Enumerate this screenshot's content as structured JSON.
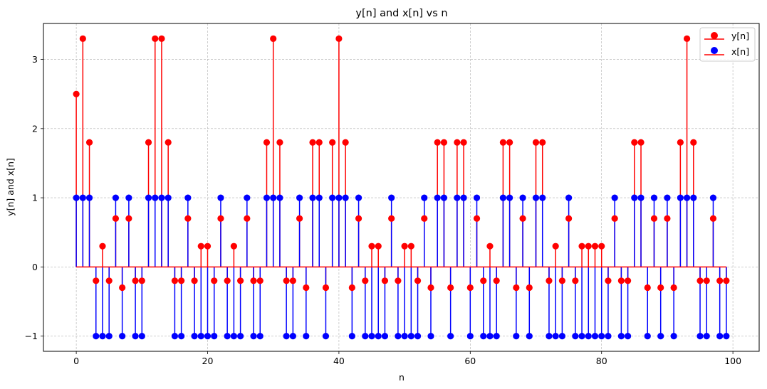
{
  "chart_data": {
    "type": "stem",
    "title": "y[n] and x[n] vs n",
    "xlabel": "n",
    "ylabel": "y[n] and x[n]",
    "xlim": [
      -5,
      104
    ],
    "ylim": [
      -1.22,
      3.52
    ],
    "xticks": [
      0,
      20,
      40,
      60,
      80,
      100
    ],
    "yticks": [
      -1,
      0,
      1,
      2,
      3
    ],
    "grid": true,
    "legend_position": "top-right",
    "baseline": 0,
    "series": [
      {
        "name": "y[n]",
        "color": "#ff0000",
        "stem_color": "#ff0000",
        "x_start": 0,
        "values": [
          2.5,
          3.3,
          1.8,
          -0.2,
          0.3,
          -0.2,
          0.7,
          -0.3,
          0.7,
          -0.2,
          -0.2,
          1.8,
          3.3,
          3.3,
          1.8,
          -0.2,
          -0.2,
          0.7,
          -0.2,
          0.3,
          0.3,
          -0.2,
          0.7,
          -0.2,
          0.3,
          -0.2,
          0.7,
          -0.2,
          -0.2,
          1.8,
          3.3,
          1.8,
          -0.2,
          -0.2,
          0.7,
          -0.3,
          1.8,
          1.8,
          -0.3,
          1.8,
          3.3,
          1.8,
          -0.3,
          0.7,
          -0.2,
          0.3,
          0.3,
          -0.2,
          0.7,
          -0.2,
          0.3,
          0.3,
          -0.2,
          0.7,
          -0.3,
          1.8,
          1.8,
          -0.3,
          1.8,
          1.8,
          -0.3,
          0.7,
          -0.2,
          0.3,
          -0.2,
          1.8,
          1.8,
          -0.3,
          0.7,
          -0.3,
          1.8,
          1.8,
          -0.2,
          0.3,
          -0.2,
          0.7,
          -0.2,
          0.3,
          0.3,
          0.3,
          0.3,
          -0.2,
          0.7,
          -0.2,
          -0.2,
          1.8,
          1.8,
          -0.3,
          0.7,
          -0.3,
          0.7,
          -0.3,
          1.8,
          3.3,
          1.8,
          -0.2,
          -0.2,
          0.7,
          -0.2,
          -0.2
        ]
      },
      {
        "name": "x[n]",
        "color": "#0000ff",
        "stem_color": "#0000ff",
        "x_start": 0,
        "values": [
          1,
          1,
          1,
          -1,
          -1,
          -1,
          1,
          -1,
          1,
          -1,
          -1,
          1,
          1,
          1,
          1,
          -1,
          -1,
          1,
          -1,
          -1,
          -1,
          -1,
          1,
          -1,
          -1,
          -1,
          1,
          -1,
          -1,
          1,
          1,
          1,
          -1,
          -1,
          1,
          -1,
          1,
          1,
          -1,
          1,
          1,
          1,
          -1,
          1,
          -1,
          -1,
          -1,
          -1,
          1,
          -1,
          -1,
          -1,
          -1,
          1,
          -1,
          1,
          1,
          -1,
          1,
          1,
          -1,
          1,
          -1,
          -1,
          -1,
          1,
          1,
          -1,
          1,
          -1,
          1,
          1,
          -1,
          -1,
          -1,
          1,
          -1,
          -1,
          -1,
          -1,
          -1,
          -1,
          1,
          -1,
          -1,
          1,
          1,
          -1,
          1,
          -1,
          1,
          -1,
          1,
          1,
          1,
          -1,
          -1,
          1,
          -1,
          -1
        ]
      }
    ]
  }
}
